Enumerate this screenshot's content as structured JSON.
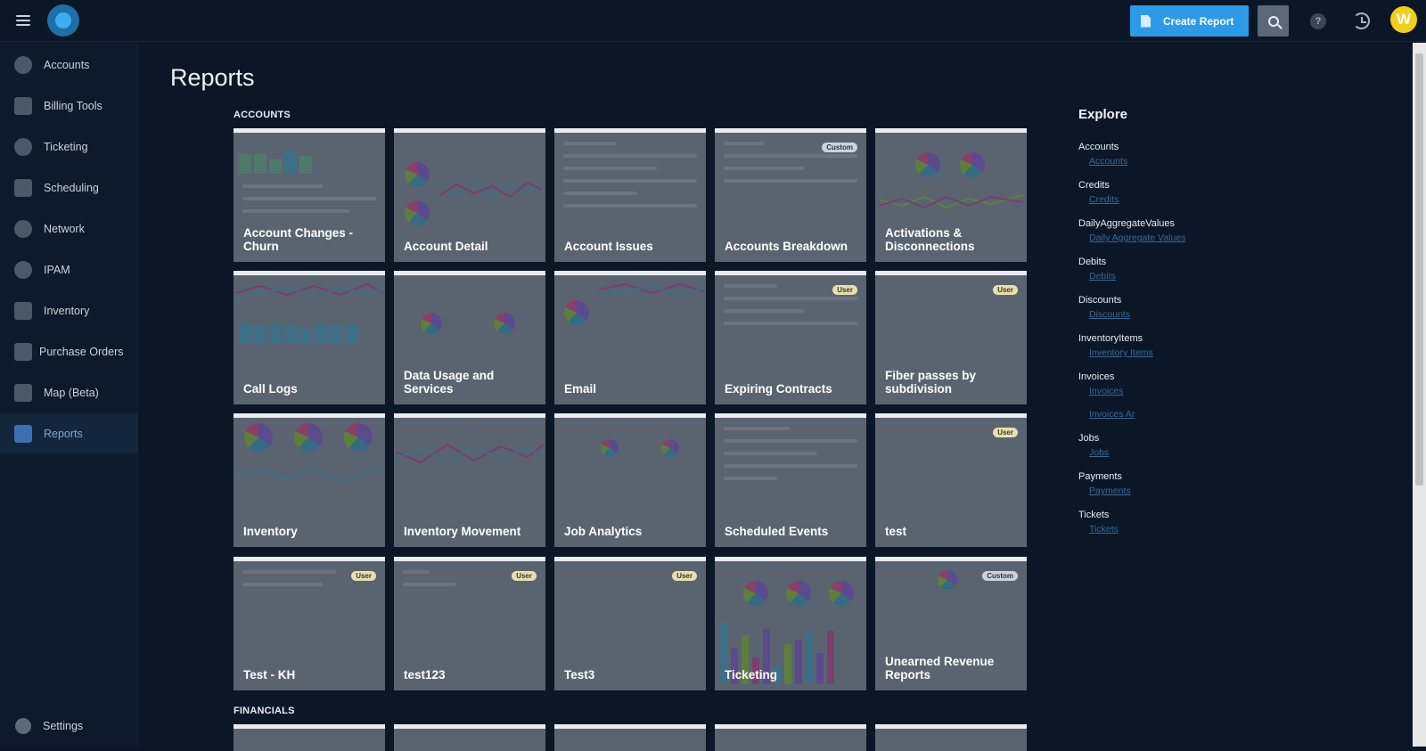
{
  "header": {
    "create_report_label": "Create Report",
    "avatar_initial": "W",
    "help_label": "?"
  },
  "sidebar": {
    "items": [
      {
        "label": "Accounts",
        "icon": "person-icon"
      },
      {
        "label": "Billing Tools",
        "icon": "abacus-icon"
      },
      {
        "label": "Ticketing",
        "icon": "chat-bubble-icon"
      },
      {
        "label": "Scheduling",
        "icon": "calendar-icon"
      },
      {
        "label": "Network",
        "icon": "heart-network-icon"
      },
      {
        "label": "IPAM",
        "icon": "nodes-icon"
      },
      {
        "label": "Inventory",
        "icon": "cart-icon"
      },
      {
        "label": "Purchase Orders",
        "icon": "clipboard-icon"
      },
      {
        "label": "Map (Beta)",
        "icon": "map-icon"
      },
      {
        "label": "Reports",
        "icon": "report-icon",
        "active": true
      }
    ],
    "settings_label": "Settings"
  },
  "page": {
    "title": "Reports",
    "sections": [
      "ACCOUNTS",
      "FINANCIALS"
    ]
  },
  "cards": [
    {
      "title": "Account Changes - Churn",
      "badge": ""
    },
    {
      "title": "Account Detail",
      "badge": ""
    },
    {
      "title": "Account Issues",
      "badge": ""
    },
    {
      "title": "Accounts Breakdown",
      "badge": "Custom"
    },
    {
      "title": "Activations & Disconnections",
      "badge": ""
    },
    {
      "title": "Call Logs",
      "badge": ""
    },
    {
      "title": "Data Usage and Services",
      "badge": ""
    },
    {
      "title": "Email",
      "badge": ""
    },
    {
      "title": "Expiring Contracts",
      "badge": "User"
    },
    {
      "title": "Fiber passes by subdivision",
      "badge": "User"
    },
    {
      "title": "Inventory",
      "badge": ""
    },
    {
      "title": "Inventory Movement",
      "badge": ""
    },
    {
      "title": "Job Analytics",
      "badge": ""
    },
    {
      "title": "Scheduled Events",
      "badge": ""
    },
    {
      "title": "test",
      "badge": "User"
    },
    {
      "title": "Test - KH",
      "badge": "User"
    },
    {
      "title": "test123",
      "badge": "User"
    },
    {
      "title": "Test3",
      "badge": "User"
    },
    {
      "title": "Ticketing",
      "badge": ""
    },
    {
      "title": "Unearned Revenue Reports",
      "badge": "Custom"
    }
  ],
  "explore": {
    "title": "Explore",
    "groups": [
      {
        "name": "Accounts",
        "links": [
          "Accounts"
        ]
      },
      {
        "name": "Credits",
        "links": [
          "Credits"
        ]
      },
      {
        "name": "DailyAggregateValues",
        "links": [
          "Daily Aggregate Values"
        ]
      },
      {
        "name": "Debits",
        "links": [
          "Debits"
        ]
      },
      {
        "name": "Discounts",
        "links": [
          "Discounts"
        ]
      },
      {
        "name": "InventoryItems",
        "links": [
          "Inventory Items"
        ]
      },
      {
        "name": "Invoices",
        "links": [
          "Invoices",
          "Invoices Ar"
        ]
      },
      {
        "name": "Jobs",
        "links": [
          "Jobs"
        ]
      },
      {
        "name": "Payments",
        "links": [
          "Payments"
        ]
      },
      {
        "name": "Tickets",
        "links": [
          "Tickets"
        ]
      }
    ]
  },
  "colors": {
    "accent": "#2d9ae8",
    "background": "#0b1727",
    "card": "#5a6471",
    "active_nav": "#14263b",
    "avatar": "#f2cf1a"
  }
}
